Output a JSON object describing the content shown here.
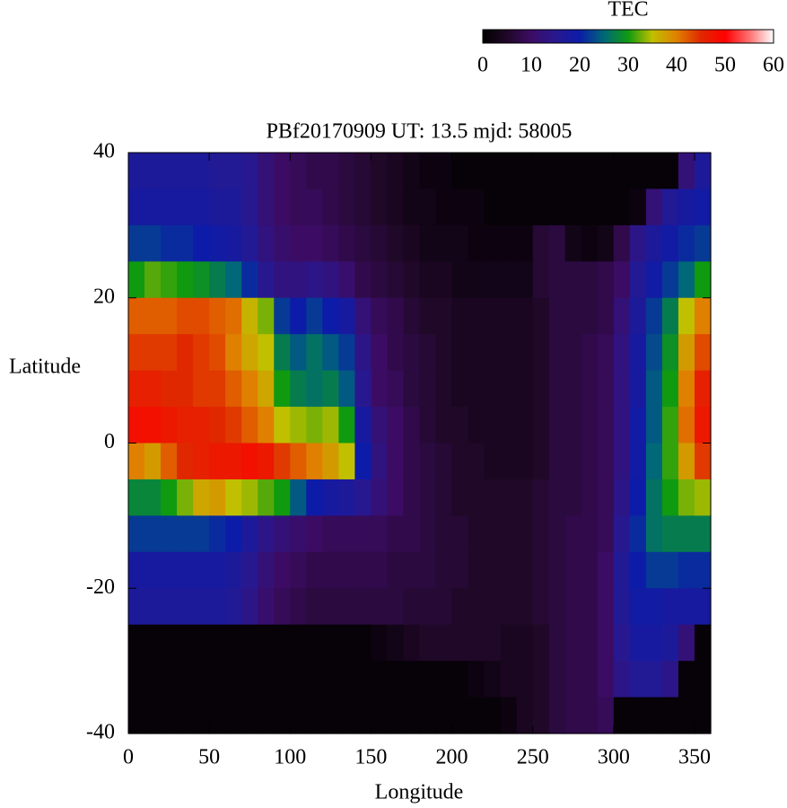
{
  "chart_data": {
    "type": "heatmap",
    "title": "PBf20170909  UT: 13.5  mjd: 58005",
    "x_label": "Longitude",
    "y_label": "Latitude",
    "x": [
      5,
      15,
      25,
      35,
      45,
      55,
      65,
      75,
      85,
      95,
      105,
      115,
      125,
      135,
      145,
      155,
      165,
      175,
      185,
      195,
      205,
      215,
      225,
      235,
      245,
      255,
      265,
      275,
      285,
      295,
      305,
      315,
      325,
      335,
      345,
      355
    ],
    "y": [
      37.5,
      32.5,
      27.5,
      22.5,
      17.5,
      12.5,
      7.5,
      2.5,
      -2.5,
      -7.5,
      -12.5,
      -17.5,
      -22.5,
      -27.5,
      -32.5,
      -37.5
    ],
    "values": [
      [
        17,
        17,
        17,
        17,
        17,
        16,
        16,
        15,
        12,
        10,
        9,
        8,
        8,
        7,
        6,
        5,
        4,
        3,
        2,
        2,
        1,
        1,
        1,
        1,
        1,
        1,
        1,
        1,
        1,
        1,
        1,
        1,
        1,
        1,
        12,
        17
      ],
      [
        18,
        18,
        18,
        18,
        18,
        17,
        17,
        15,
        12,
        10,
        9,
        9,
        8,
        7,
        6,
        5,
        4,
        3,
        3,
        2,
        2,
        2,
        1,
        1,
        1,
        1,
        1,
        1,
        1,
        1,
        1,
        2,
        12,
        16,
        18,
        19
      ],
      [
        22,
        22,
        21,
        21,
        20,
        19,
        18,
        16,
        13,
        11,
        10,
        10,
        9,
        8,
        7,
        6,
        5,
        4,
        3,
        3,
        3,
        2,
        2,
        2,
        2,
        6,
        7,
        3,
        2,
        3,
        8,
        14,
        17,
        19,
        21,
        22
      ],
      [
        30,
        32,
        31,
        30,
        29,
        27,
        25,
        21,
        15,
        13,
        13,
        14,
        13,
        11,
        8,
        7,
        6,
        5,
        4,
        4,
        3,
        3,
        3,
        3,
        3,
        6,
        7,
        7,
        7,
        8,
        10,
        16,
        19,
        22,
        25,
        30
      ],
      [
        42,
        42,
        42,
        43,
        43,
        42,
        41,
        36,
        33,
        22,
        20,
        22,
        20,
        18,
        12,
        9,
        8,
        6,
        5,
        5,
        4,
        4,
        4,
        4,
        4,
        5,
        7,
        7,
        7,
        8,
        12,
        17,
        22,
        27,
        35,
        40
      ],
      [
        44,
        44,
        44,
        45,
        44,
        43,
        40,
        37,
        35,
        27,
        24,
        26,
        24,
        22,
        14,
        10,
        8,
        7,
        6,
        5,
        4,
        4,
        4,
        4,
        4,
        5,
        7,
        7,
        8,
        9,
        13,
        18,
        23,
        29,
        38,
        43
      ],
      [
        46,
        46,
        45,
        45,
        44,
        44,
        42,
        40,
        37,
        30,
        27,
        26,
        27,
        24,
        15,
        10,
        9,
        7,
        6,
        5,
        4,
        4,
        4,
        4,
        4,
        5,
        7,
        7,
        8,
        9,
        13,
        18,
        24,
        30,
        40,
        46
      ],
      [
        48,
        48,
        47,
        46,
        46,
        45,
        44,
        42,
        40,
        35,
        34,
        33,
        34,
        30,
        18,
        12,
        10,
        8,
        6,
        5,
        5,
        4,
        4,
        4,
        4,
        5,
        7,
        7,
        8,
        9,
        13,
        19,
        24,
        31,
        41,
        47
      ],
      [
        40,
        38,
        42,
        45,
        46,
        47,
        47,
        48,
        47,
        44,
        42,
        40,
        38,
        35,
        20,
        13,
        10,
        8,
        7,
        6,
        5,
        5,
        4,
        4,
        4,
        5,
        7,
        7,
        8,
        9,
        13,
        19,
        25,
        31,
        38,
        44
      ],
      [
        28,
        28,
        30,
        33,
        37,
        38,
        35,
        34,
        32,
        30,
        24,
        20,
        18,
        17,
        15,
        12,
        10,
        8,
        7,
        6,
        5,
        5,
        5,
        5,
        5,
        6,
        7,
        7,
        8,
        9,
        14,
        20,
        26,
        30,
        33,
        34
      ],
      [
        22,
        22,
        22,
        22,
        22,
        21,
        20,
        17,
        14,
        12,
        11,
        10,
        9,
        9,
        9,
        9,
        8,
        8,
        7,
        6,
        6,
        5,
        5,
        5,
        5,
        6,
        7,
        8,
        8,
        9,
        15,
        21,
        26,
        27,
        27,
        27
      ],
      [
        18,
        18,
        18,
        18,
        18,
        18,
        17,
        15,
        12,
        10,
        9,
        8,
        8,
        8,
        8,
        8,
        7,
        7,
        7,
        6,
        6,
        5,
        5,
        5,
        5,
        6,
        7,
        8,
        8,
        10,
        16,
        20,
        22,
        22,
        21,
        21
      ],
      [
        17,
        17,
        17,
        17,
        17,
        17,
        16,
        14,
        11,
        9,
        8,
        7,
        7,
        7,
        7,
        7,
        7,
        6,
        6,
        6,
        5,
        5,
        5,
        5,
        5,
        6,
        7,
        8,
        8,
        10,
        16,
        19,
        19,
        18,
        18,
        18
      ],
      [
        1,
        1,
        1,
        1,
        1,
        1,
        1,
        1,
        1,
        1,
        1,
        1,
        1,
        1,
        1,
        2,
        3,
        4,
        5,
        5,
        5,
        5,
        5,
        4,
        4,
        5,
        7,
        8,
        8,
        10,
        15,
        18,
        18,
        17,
        12,
        1
      ],
      [
        1,
        1,
        1,
        1,
        1,
        1,
        1,
        1,
        1,
        1,
        1,
        1,
        1,
        1,
        1,
        1,
        1,
        1,
        1,
        1,
        1,
        2,
        3,
        4,
        4,
        5,
        7,
        8,
        8,
        10,
        14,
        16,
        16,
        14,
        1,
        1
      ],
      [
        1,
        1,
        1,
        1,
        1,
        1,
        1,
        1,
        1,
        1,
        1,
        1,
        1,
        1,
        1,
        1,
        1,
        1,
        1,
        1,
        1,
        1,
        1,
        2,
        4,
        5,
        7,
        8,
        8,
        9,
        1,
        1,
        1,
        1,
        1,
        1
      ]
    ],
    "xlim": [
      0,
      360
    ],
    "ylim": [
      -40,
      40
    ],
    "xticks": [
      0,
      50,
      100,
      150,
      200,
      250,
      300,
      350
    ],
    "yticks": [
      -40,
      -20,
      0,
      20,
      40
    ],
    "colorbar": {
      "title": "TEC",
      "lim": [
        0,
        60
      ],
      "ticks": [
        0,
        10,
        20,
        30,
        40,
        50,
        60
      ],
      "colors": [
        "#000000",
        "#200828",
        "#3c0c64",
        "#281890",
        "#0c1ca8",
        "#006878",
        "#109a10",
        "#c0c000",
        "#e08000",
        "#e02800",
        "#ff0000",
        "#ff7070",
        "#ffffff"
      ]
    }
  }
}
